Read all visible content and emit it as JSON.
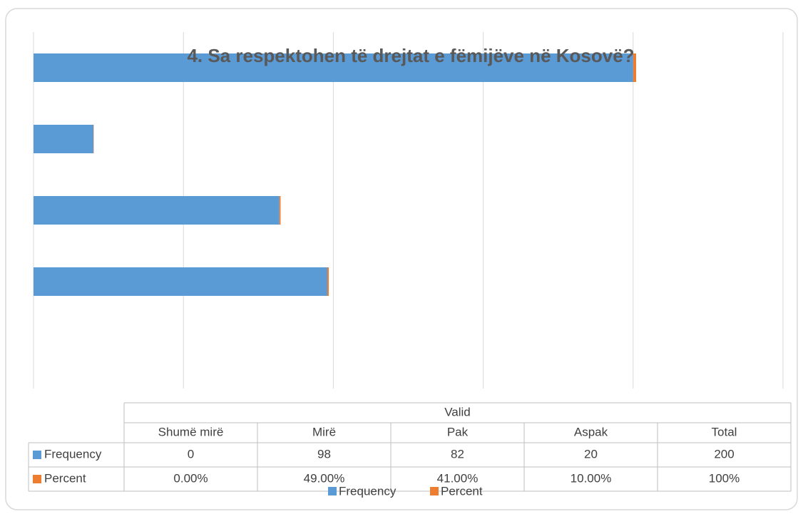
{
  "chart_data": {
    "type": "bar",
    "orientation": "horizontal",
    "stacked": true,
    "title": "4. Sa respektohen të drejtat e fëmijëve në Kosovë?",
    "group_label": "Valid",
    "categories": [
      "Shumë mirë",
      "Mirë",
      "Pak",
      "Aspak",
      "Total"
    ],
    "series": [
      {
        "name": "Frequency",
        "color": "#5b9bd5",
        "values": [
          0,
          98,
          82,
          20,
          200
        ]
      },
      {
        "name": "Percent",
        "color": "#ed7d31",
        "values": [
          0,
          0.49,
          0.41,
          0.1,
          1
        ],
        "value_labels": [
          "0.00%",
          "49.00%",
          "41.00%",
          "10.00%",
          "100%"
        ]
      }
    ],
    "xlim": [
      0,
      250
    ],
    "xticks": [
      0,
      50,
      100,
      150,
      200,
      250
    ],
    "grid": true,
    "legend": "bottom"
  }
}
